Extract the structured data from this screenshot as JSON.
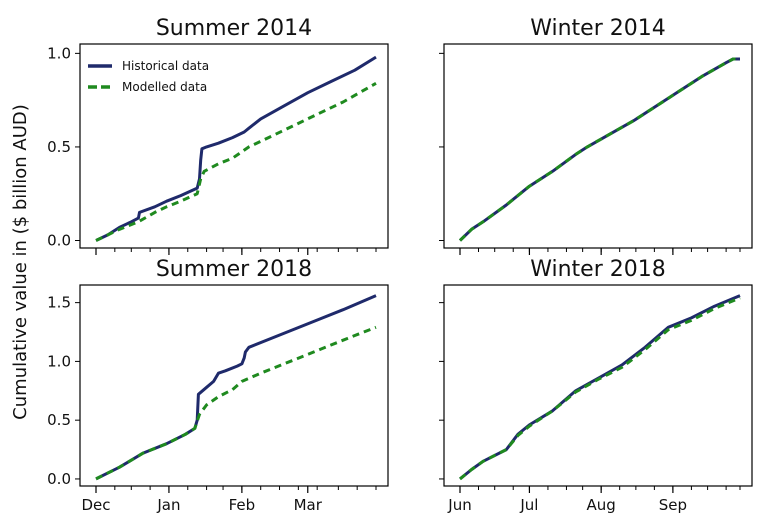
{
  "figure": {
    "ylabel": "Cumulative value in ($ billion AUD)",
    "legend": {
      "placement": "top-left",
      "items": [
        {
          "label": "Historical data",
          "color": "#1f2a6b",
          "style": "solid"
        },
        {
          "label": "Modelled data",
          "color": "#1f8a1f",
          "style": "dashed"
        }
      ]
    }
  },
  "chart_data": [
    {
      "type": "line",
      "title": "Summer 2014",
      "xlim": [
        0,
        119
      ],
      "x_tick_positions": [
        0,
        31,
        62,
        90
      ],
      "x_tick_labels": [
        "",
        "",
        "",
        ""
      ],
      "x_minor_ticks": [
        0,
        8,
        15,
        23,
        31,
        39,
        47,
        54,
        62,
        70,
        78,
        86,
        94,
        103,
        111,
        119
      ],
      "ylim": [
        -0.04,
        1.05
      ],
      "yticks": [
        0.0,
        0.5,
        1.0
      ],
      "ytick_labels": [
        "0.0",
        "0.5",
        "1.0"
      ],
      "legend": true,
      "series": [
        {
          "name": "Historical data",
          "color": "#1f2a6b",
          "dash": "none",
          "x": [
            0,
            5,
            10,
            15,
            18,
            18.5,
            25,
            30,
            36,
            43,
            44,
            44.5,
            45,
            47,
            52,
            58,
            63,
            65,
            70,
            80,
            90,
            100,
            110,
            119
          ],
          "y": [
            0.0,
            0.03,
            0.07,
            0.1,
            0.12,
            0.15,
            0.18,
            0.21,
            0.24,
            0.28,
            0.33,
            0.43,
            0.49,
            0.5,
            0.52,
            0.55,
            0.58,
            0.6,
            0.65,
            0.72,
            0.79,
            0.85,
            0.91,
            0.98
          ]
        },
        {
          "name": "Modelled data",
          "color": "#1f8a1f",
          "dash": "7,5",
          "x": [
            0,
            10,
            18,
            25,
            30,
            36,
            43,
            44.5,
            46,
            52,
            58,
            65,
            75,
            85,
            95,
            105,
            119
          ],
          "y": [
            0.0,
            0.06,
            0.1,
            0.15,
            0.18,
            0.21,
            0.25,
            0.33,
            0.37,
            0.41,
            0.44,
            0.5,
            0.56,
            0.62,
            0.68,
            0.74,
            0.84
          ]
        }
      ]
    },
    {
      "type": "line",
      "title": "Winter 2014",
      "xlim": [
        0,
        121
      ],
      "x_tick_positions": [
        0,
        30,
        61,
        92
      ],
      "x_tick_labels": [
        "",
        "",
        "",
        ""
      ],
      "x_minor_ticks": [
        0,
        8,
        15,
        23,
        30,
        38,
        46,
        53,
        61,
        69,
        76,
        84,
        92,
        100,
        107,
        115,
        121
      ],
      "ylim": [
        -0.04,
        1.05
      ],
      "yticks": [
        0.0,
        0.5,
        1.0
      ],
      "ytick_labels": [
        "",
        "",
        ""
      ],
      "legend": false,
      "series": [
        {
          "name": "Historical data",
          "color": "#1f2a6b",
          "dash": "none",
          "x": [
            0,
            5,
            10,
            20,
            30,
            40,
            50,
            55,
            65,
            75,
            85,
            95,
            105,
            115,
            118,
            121
          ],
          "y": [
            0.0,
            0.06,
            0.1,
            0.19,
            0.29,
            0.37,
            0.46,
            0.5,
            0.57,
            0.64,
            0.72,
            0.8,
            0.88,
            0.95,
            0.97,
            0.97
          ]
        },
        {
          "name": "Modelled data",
          "color": "#1f8a1f",
          "dash": "7,5",
          "x": [
            0,
            5,
            10,
            20,
            30,
            40,
            50,
            55,
            65,
            75,
            85,
            95,
            105,
            115,
            118,
            121
          ],
          "y": [
            0.0,
            0.06,
            0.1,
            0.19,
            0.29,
            0.37,
            0.46,
            0.5,
            0.57,
            0.64,
            0.72,
            0.8,
            0.88,
            0.95,
            0.97,
            0.97
          ]
        }
      ]
    },
    {
      "type": "line",
      "title": "Summer 2018",
      "xlim": [
        0,
        119
      ],
      "x_tick_positions": [
        0,
        31,
        62,
        90
      ],
      "x_tick_labels": [
        "Dec",
        "Jan",
        "Feb",
        "Mar"
      ],
      "x_minor_ticks": [
        0,
        8,
        15,
        23,
        31,
        39,
        47,
        54,
        62,
        70,
        78,
        86,
        94,
        103,
        111,
        119
      ],
      "ylim": [
        -0.06,
        1.65
      ],
      "yticks": [
        0.0,
        0.5,
        1.0,
        1.5
      ],
      "ytick_labels": [
        "0.0",
        "0.5",
        "1.0",
        "1.5"
      ],
      "legend": false,
      "series": [
        {
          "name": "Historical data",
          "color": "#1f2a6b",
          "dash": "none",
          "x": [
            0,
            10,
            20,
            30,
            38,
            42,
            43,
            43.5,
            47,
            50,
            52,
            55,
            60,
            62,
            63,
            63.5,
            65,
            75,
            85,
            95,
            105,
            119
          ],
          "y": [
            0.0,
            0.1,
            0.22,
            0.3,
            0.38,
            0.43,
            0.5,
            0.72,
            0.78,
            0.83,
            0.9,
            0.92,
            0.96,
            0.98,
            1.03,
            1.08,
            1.12,
            1.2,
            1.28,
            1.36,
            1.44,
            1.56
          ]
        },
        {
          "name": "Modelled data",
          "color": "#1f8a1f",
          "dash": "7,5",
          "x": [
            0,
            10,
            20,
            30,
            38,
            42,
            44,
            47,
            52,
            58,
            62,
            70,
            80,
            90,
            100,
            110,
            119
          ],
          "y": [
            0.0,
            0.1,
            0.22,
            0.3,
            0.38,
            0.43,
            0.55,
            0.63,
            0.7,
            0.76,
            0.83,
            0.9,
            0.98,
            1.06,
            1.14,
            1.22,
            1.29
          ]
        }
      ]
    },
    {
      "type": "line",
      "title": "Winter 2018",
      "xlim": [
        0,
        121
      ],
      "x_tick_positions": [
        0,
        30,
        61,
        92
      ],
      "x_tick_labels": [
        "Jun",
        "Jul",
        "Aug",
        "Sep"
      ],
      "x_minor_ticks": [
        0,
        8,
        15,
        23,
        30,
        38,
        46,
        53,
        61,
        69,
        76,
        84,
        92,
        100,
        107,
        115,
        121
      ],
      "ylim": [
        -0.06,
        1.65
      ],
      "yticks": [
        0.0,
        0.5,
        1.0,
        1.5
      ],
      "ytick_labels": [
        "",
        "",
        "",
        ""
      ],
      "legend": false,
      "series": [
        {
          "name": "Historical data",
          "color": "#1f2a6b",
          "dash": "none",
          "x": [
            0,
            5,
            10,
            20,
            25,
            30,
            40,
            50,
            60,
            70,
            80,
            90,
            100,
            110,
            121
          ],
          "y": [
            0.0,
            0.08,
            0.15,
            0.25,
            0.38,
            0.46,
            0.58,
            0.75,
            0.86,
            0.97,
            1.12,
            1.29,
            1.37,
            1.47,
            1.56
          ]
        },
        {
          "name": "Modelled data",
          "color": "#1f8a1f",
          "dash": "7,5",
          "x": [
            0,
            5,
            10,
            20,
            25,
            30,
            40,
            50,
            60,
            70,
            80,
            90,
            100,
            110,
            121
          ],
          "y": [
            0.0,
            0.08,
            0.15,
            0.25,
            0.37,
            0.45,
            0.58,
            0.74,
            0.85,
            0.95,
            1.1,
            1.27,
            1.35,
            1.45,
            1.54
          ]
        }
      ]
    }
  ]
}
